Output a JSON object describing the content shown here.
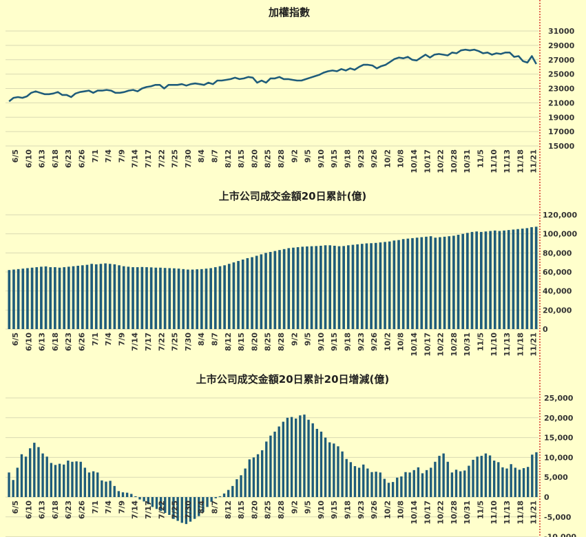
{
  "colors": {
    "background": "#ffffcc",
    "series": "#1f5c7a",
    "marker": "#cc0000",
    "grid": "#d9d9b3"
  },
  "chart_data": [
    {
      "type": "line",
      "title": "加權指數",
      "ylim": [
        15000,
        31000
      ],
      "yticks": [
        "15000",
        "17000",
        "19000",
        "21000",
        "23000",
        "25000",
        "27000",
        "29000",
        "31000"
      ],
      "xlabels": [
        "6/5",
        "6/10",
        "6/13",
        "6/18",
        "6/23",
        "6/26",
        "7/1",
        "7/4",
        "7/9",
        "7/14",
        "7/17",
        "7/22",
        "7/25",
        "7/30",
        "8/4",
        "8/7",
        "8/12",
        "8/15",
        "8/20",
        "8/25",
        "8/28",
        "9/2",
        "9/5",
        "9/10",
        "9/15",
        "9/18",
        "9/23",
        "9/26",
        "10/2",
        "10/8",
        "10/14",
        "10/17",
        "10/22",
        "10/28",
        "10/31",
        "11/5",
        "11/10",
        "11/13",
        "11/18",
        "11/21"
      ],
      "values": [
        21200,
        21700,
        21800,
        21700,
        21900,
        22400,
        22600,
        22400,
        22200,
        22200,
        22300,
        22500,
        22100,
        22100,
        21800,
        22300,
        22500,
        22600,
        22700,
        22400,
        22700,
        22700,
        22800,
        22700,
        22400,
        22400,
        22500,
        22700,
        22800,
        22600,
        23000,
        23200,
        23300,
        23500,
        23500,
        23000,
        23500,
        23500,
        23500,
        23600,
        23400,
        23600,
        23700,
        23600,
        23500,
        23800,
        23600,
        24100,
        24100,
        24200,
        24300,
        24500,
        24300,
        24400,
        24600,
        24500,
        23800,
        24100,
        23800,
        24400,
        24400,
        24600,
        24300,
        24300,
        24200,
        24100,
        24100,
        24300,
        24500,
        24700,
        24900,
        25200,
        25400,
        25500,
        25400,
        25700,
        25500,
        25800,
        25600,
        26000,
        26300,
        26300,
        26200,
        25800,
        26100,
        26300,
        26700,
        27100,
        27300,
        27200,
        27400,
        27000,
        26900,
        27300,
        27700,
        27300,
        27700,
        27800,
        27700,
        27600,
        28000,
        27900,
        28300,
        28400,
        28300,
        28400,
        28200,
        27900,
        28000,
        27700,
        27900,
        27800,
        28000,
        28000,
        27400,
        27500,
        26800,
        26600,
        27500,
        26400
      ]
    },
    {
      "type": "bar",
      "title": "上市公司成交金額20日累計(億)",
      "ylim": [
        0,
        120000
      ],
      "yticks": [
        "0",
        "20,000",
        "40,000",
        "60,000",
        "80,000",
        "100,000",
        "120,000"
      ],
      "xlabels": [
        "6/5",
        "6/10",
        "6/13",
        "6/18",
        "6/23",
        "6/26",
        "7/1",
        "7/4",
        "7/9",
        "7/14",
        "7/17",
        "7/22",
        "7/25",
        "7/30",
        "8/4",
        "8/7",
        "8/12",
        "8/15",
        "8/20",
        "8/25",
        "8/28",
        "9/2",
        "9/5",
        "9/10",
        "9/15",
        "9/18",
        "9/23",
        "9/26",
        "10/2",
        "10/8",
        "10/14",
        "10/17",
        "10/22",
        "10/28",
        "10/31",
        "11/5",
        "11/10",
        "11/13",
        "11/18",
        "11/21"
      ],
      "values": [
        62000,
        62500,
        63000,
        63500,
        64000,
        64500,
        65000,
        65500,
        65800,
        65000,
        65000,
        64500,
        65000,
        65500,
        66000,
        66500,
        67000,
        67500,
        68500,
        68000,
        68500,
        69000,
        68500,
        68000,
        67000,
        66000,
        65500,
        65000,
        65000,
        65200,
        65000,
        64800,
        64500,
        64500,
        64200,
        64000,
        63800,
        63500,
        63000,
        62500,
        62500,
        62800,
        63000,
        63500,
        64000,
        65000,
        66000,
        67000,
        68500,
        70000,
        71500,
        73000,
        74500,
        75500,
        77000,
        78500,
        80000,
        81000,
        82000,
        83000,
        84000,
        85000,
        85500,
        86000,
        86500,
        86800,
        87000,
        87200,
        87500,
        88000,
        88000,
        87500,
        87000,
        87200,
        88000,
        88500,
        89000,
        89500,
        90000,
        90200,
        90500,
        91000,
        91500,
        92000,
        93000,
        93500,
        94500,
        95000,
        95500,
        96000,
        96500,
        97000,
        97500,
        96000,
        96500,
        97000,
        97500,
        98000,
        99000,
        100000,
        101000,
        102000,
        102500,
        102000,
        102500,
        103000,
        103500,
        103000,
        103500,
        104000,
        104500,
        105000,
        105500,
        106000,
        107000,
        107500
      ]
    },
    {
      "type": "bar",
      "title": "上市公司成交金額20日累計20日增減(億)",
      "ylim": [
        -10000,
        25000
      ],
      "yticks": [
        "-10,000",
        "-5,000",
        "0",
        "5,000",
        "10,000",
        "15,000",
        "20,000",
        "25,000"
      ],
      "xlabels": [
        "6/5",
        "6/10",
        "6/13",
        "6/18",
        "6/23",
        "6/26",
        "7/1",
        "7/4",
        "7/9",
        "7/14",
        "7/17",
        "7/22",
        "7/25",
        "7/30",
        "8/4",
        "8/7",
        "8/12",
        "8/15",
        "8/20",
        "8/25",
        "8/28",
        "9/2",
        "9/5",
        "9/10",
        "9/15",
        "9/18",
        "9/23",
        "9/26",
        "10/2",
        "10/8",
        "10/14",
        "10/17",
        "10/22",
        "10/28",
        "10/31",
        "11/5",
        "11/10",
        "11/13",
        "11/18",
        "11/21"
      ],
      "values": [
        6200,
        4300,
        7400,
        10800,
        10200,
        12300,
        13700,
        12600,
        11000,
        10200,
        8600,
        8100,
        8400,
        8200,
        9200,
        8900,
        9000,
        8900,
        7400,
        6200,
        6500,
        6200,
        4200,
        3900,
        4100,
        2800,
        1500,
        1200,
        1100,
        800,
        200,
        -600,
        -1100,
        -1800,
        -2500,
        -3000,
        -3500,
        -4000,
        -4500,
        -5500,
        -6000,
        -6500,
        -6800,
        -6200,
        -5500,
        -4800,
        -3800,
        -2500,
        -1200,
        -300,
        200,
        900,
        1800,
        2800,
        4500,
        5500,
        7200,
        9500,
        10000,
        10800,
        11800,
        14000,
        15500,
        16500,
        17800,
        19000,
        20000,
        20200,
        19800,
        20600,
        20800,
        19500,
        18600,
        17200,
        16500,
        15000,
        13800,
        13500,
        12800,
        11500,
        9600,
        8800,
        7800,
        7400,
        8200,
        7200,
        6300,
        6400,
        6200,
        4600,
        3600,
        3800,
        4900,
        5200,
        6300,
        6200,
        6800,
        7500,
        6000,
        6800,
        7400,
        8900,
        10400,
        11000,
        8900,
        6200,
        6900,
        6500,
        6700,
        7900,
        9400,
        10200,
        10400,
        11000,
        10500,
        9200,
        8800,
        7500,
        7200,
        8300,
        7400,
        6900,
        7300,
        7600,
        10700,
        11300
      ]
    }
  ]
}
